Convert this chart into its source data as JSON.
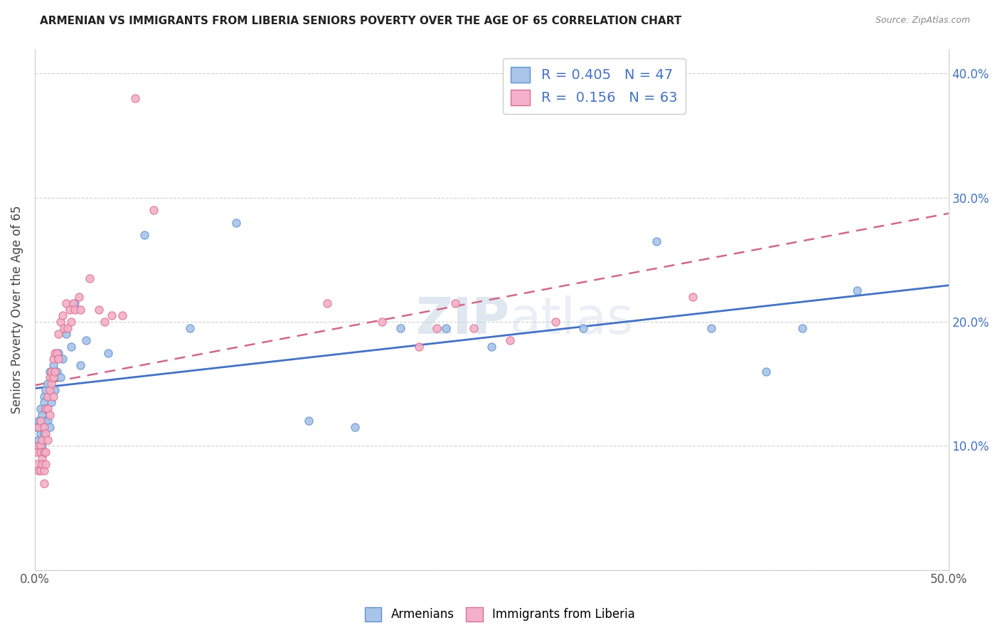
{
  "title": "ARMENIAN VS IMMIGRANTS FROM LIBERIA SENIORS POVERTY OVER THE AGE OF 65 CORRELATION CHART",
  "source": "Source: ZipAtlas.com",
  "ylabel": "Seniors Poverty Over the Age of 65",
  "xlim": [
    0.0,
    0.5
  ],
  "ylim": [
    0.0,
    0.42
  ],
  "armenian_R": 0.405,
  "armenian_N": 47,
  "liberia_R": 0.156,
  "liberia_N": 63,
  "legend_label_armenian": "Armenians",
  "legend_label_liberia": "Immigrants from Liberia",
  "armenian_dot_color": "#a8c4e8",
  "armenian_edge_color": "#6090d0",
  "liberia_dot_color": "#f4b0c8",
  "liberia_edge_color": "#d87090",
  "armenian_line_color": "#4472c4",
  "liberia_line_color": "#d06888",
  "watermark": "ZIPatlas",
  "armenian_x": [
    0.001,
    0.002,
    0.002,
    0.003,
    0.003,
    0.003,
    0.004,
    0.004,
    0.004,
    0.005,
    0.005,
    0.005,
    0.006,
    0.006,
    0.006,
    0.007,
    0.007,
    0.008,
    0.008,
    0.009,
    0.009,
    0.01,
    0.011,
    0.012,
    0.013,
    0.014,
    0.015,
    0.017,
    0.02,
    0.022,
    0.025,
    0.028,
    0.04,
    0.06,
    0.085,
    0.11,
    0.15,
    0.175,
    0.2,
    0.225,
    0.25,
    0.3,
    0.34,
    0.37,
    0.4,
    0.42,
    0.45
  ],
  "armenian_y": [
    0.115,
    0.12,
    0.105,
    0.13,
    0.12,
    0.11,
    0.125,
    0.115,
    0.1,
    0.14,
    0.135,
    0.11,
    0.145,
    0.13,
    0.12,
    0.15,
    0.12,
    0.16,
    0.115,
    0.155,
    0.135,
    0.165,
    0.145,
    0.16,
    0.175,
    0.155,
    0.17,
    0.19,
    0.18,
    0.215,
    0.165,
    0.185,
    0.175,
    0.27,
    0.195,
    0.28,
    0.12,
    0.115,
    0.195,
    0.195,
    0.18,
    0.195,
    0.265,
    0.195,
    0.16,
    0.195,
    0.225
  ],
  "liberia_x": [
    0.001,
    0.001,
    0.002,
    0.002,
    0.002,
    0.003,
    0.003,
    0.003,
    0.003,
    0.004,
    0.004,
    0.004,
    0.005,
    0.005,
    0.005,
    0.005,
    0.006,
    0.006,
    0.006,
    0.006,
    0.007,
    0.007,
    0.007,
    0.008,
    0.008,
    0.008,
    0.009,
    0.009,
    0.01,
    0.01,
    0.01,
    0.011,
    0.011,
    0.012,
    0.013,
    0.013,
    0.014,
    0.015,
    0.016,
    0.017,
    0.018,
    0.019,
    0.02,
    0.021,
    0.022,
    0.024,
    0.025,
    0.03,
    0.035,
    0.038,
    0.042,
    0.048,
    0.055,
    0.065,
    0.16,
    0.19,
    0.21,
    0.22,
    0.23,
    0.24,
    0.26,
    0.285,
    0.36
  ],
  "liberia_y": [
    0.085,
    0.095,
    0.1,
    0.115,
    0.08,
    0.12,
    0.1,
    0.095,
    0.08,
    0.105,
    0.09,
    0.085,
    0.115,
    0.095,
    0.08,
    0.07,
    0.13,
    0.11,
    0.095,
    0.085,
    0.14,
    0.13,
    0.105,
    0.155,
    0.145,
    0.125,
    0.16,
    0.15,
    0.17,
    0.155,
    0.14,
    0.175,
    0.16,
    0.175,
    0.19,
    0.17,
    0.2,
    0.205,
    0.195,
    0.215,
    0.195,
    0.21,
    0.2,
    0.215,
    0.21,
    0.22,
    0.21,
    0.235,
    0.21,
    0.2,
    0.205,
    0.205,
    0.38,
    0.29,
    0.215,
    0.2,
    0.18,
    0.195,
    0.215,
    0.195,
    0.185,
    0.2,
    0.22
  ]
}
